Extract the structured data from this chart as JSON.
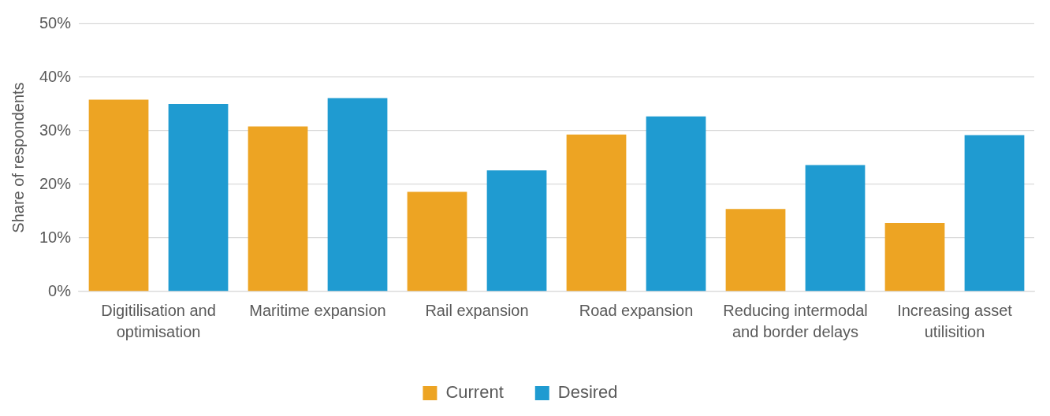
{
  "chart_data": {
    "type": "bar",
    "ylabel": "Share of respondents",
    "categories": [
      "Digitilisation and optimisation",
      "Maritime expansion",
      "Rail expansion",
      "Road expansion",
      "Reducing intermodal and border delays",
      "Increasing asset utilisition"
    ],
    "series": [
      {
        "name": "Current",
        "color": "#eda423",
        "values": [
          35.8,
          30.8,
          18.6,
          29.3,
          15.4,
          12.8
        ]
      },
      {
        "name": "Desired",
        "color": "#1f9bd1",
        "values": [
          35.0,
          36.1,
          22.6,
          32.7,
          23.6,
          29.2
        ]
      }
    ],
    "ylim": [
      0,
      50
    ],
    "yticks": [
      {
        "value": 0,
        "label": "0%"
      },
      {
        "value": 10,
        "label": "10%"
      },
      {
        "value": 20,
        "label": "20%"
      },
      {
        "value": 30,
        "label": "30%"
      },
      {
        "value": 40,
        "label": "40%"
      },
      {
        "value": 50,
        "label": "50%"
      }
    ],
    "grid": "y",
    "legend": "bottom"
  }
}
